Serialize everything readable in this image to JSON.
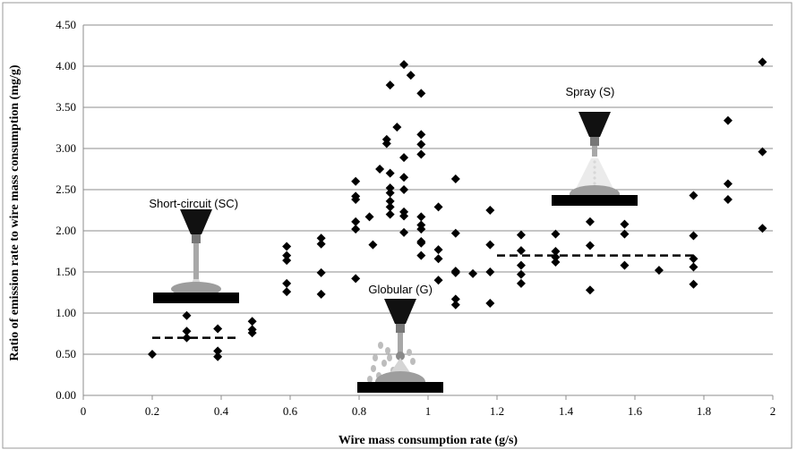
{
  "chart_data": {
    "type": "scatter",
    "title": "",
    "xlabel": "Wire mass consumption rate (g/s)",
    "ylabel": "Ratio of emission rate to wire mass consumption  (mg/g)",
    "xlim": [
      0,
      2
    ],
    "ylim": [
      0,
      4.5
    ],
    "x_ticks": [
      "0",
      "0.2",
      "0.4",
      "0.6",
      "0.8",
      "1",
      "1.2",
      "1.4",
      "1.6",
      "1.8",
      "2"
    ],
    "y_ticks": [
      "0.00",
      "0.50",
      "1.00",
      "1.50",
      "2.00",
      "2.50",
      "3.00",
      "3.50",
      "4.00",
      "4.50"
    ],
    "grid": "horizontal",
    "legend": "none",
    "marker": "diamond",
    "series": [
      {
        "points": [
          [
            0.2,
            0.5
          ],
          [
            0.3,
            0.97
          ],
          [
            0.3,
            0.78
          ],
          [
            0.3,
            0.7
          ],
          [
            0.39,
            0.81
          ],
          [
            0.39,
            0.54
          ],
          [
            0.39,
            0.47
          ],
          [
            0.49,
            0.9
          ],
          [
            0.49,
            0.8
          ],
          [
            0.49,
            0.76
          ],
          [
            0.59,
            1.81
          ],
          [
            0.59,
            1.7
          ],
          [
            0.59,
            1.64
          ],
          [
            0.59,
            1.36
          ],
          [
            0.59,
            1.26
          ],
          [
            0.69,
            1.91
          ],
          [
            0.69,
            1.84
          ],
          [
            0.69,
            1.49
          ],
          [
            0.69,
            1.23
          ],
          [
            0.79,
            2.6
          ],
          [
            0.79,
            2.42
          ],
          [
            0.79,
            2.38
          ],
          [
            0.79,
            2.11
          ],
          [
            0.79,
            2.02
          ],
          [
            0.79,
            1.42
          ],
          [
            0.83,
            2.17
          ],
          [
            0.84,
            1.83
          ],
          [
            0.86,
            2.75
          ],
          [
            0.88,
            3.11
          ],
          [
            0.88,
            3.06
          ],
          [
            0.89,
            3.77
          ],
          [
            0.89,
            2.7
          ],
          [
            0.89,
            2.52
          ],
          [
            0.89,
            2.46
          ],
          [
            0.89,
            2.36
          ],
          [
            0.89,
            2.29
          ],
          [
            0.89,
            2.2
          ],
          [
            0.91,
            3.26
          ],
          [
            0.93,
            4.02
          ],
          [
            0.93,
            2.89
          ],
          [
            0.93,
            2.65
          ],
          [
            0.93,
            2.5
          ],
          [
            0.93,
            2.23
          ],
          [
            0.93,
            2.18
          ],
          [
            0.93,
            1.98
          ],
          [
            0.95,
            3.89
          ],
          [
            0.98,
            3.67
          ],
          [
            0.98,
            3.17
          ],
          [
            0.98,
            3.05
          ],
          [
            0.98,
            2.93
          ],
          [
            0.98,
            2.17
          ],
          [
            0.98,
            2.07
          ],
          [
            0.98,
            2.02
          ],
          [
            0.98,
            1.87
          ],
          [
            0.98,
            1.85
          ],
          [
            0.98,
            1.7
          ],
          [
            1.03,
            2.29
          ],
          [
            1.03,
            1.77
          ],
          [
            1.03,
            1.66
          ],
          [
            1.03,
            1.4
          ],
          [
            1.08,
            2.63
          ],
          [
            1.08,
            1.97
          ],
          [
            1.08,
            1.51
          ],
          [
            1.08,
            1.17
          ],
          [
            1.08,
            1.1
          ],
          [
            1.08,
            1.49
          ],
          [
            1.13,
            1.48
          ],
          [
            1.18,
            2.25
          ],
          [
            1.18,
            1.83
          ],
          [
            1.18,
            1.5
          ],
          [
            1.18,
            1.12
          ],
          [
            1.27,
            1.95
          ],
          [
            1.27,
            1.76
          ],
          [
            1.27,
            1.58
          ],
          [
            1.27,
            1.47
          ],
          [
            1.27,
            1.36
          ],
          [
            1.37,
            1.96
          ],
          [
            1.37,
            1.75
          ],
          [
            1.37,
            1.68
          ],
          [
            1.37,
            1.62
          ],
          [
            1.47,
            2.11
          ],
          [
            1.47,
            1.82
          ],
          [
            1.47,
            1.28
          ],
          [
            1.57,
            2.08
          ],
          [
            1.57,
            1.96
          ],
          [
            1.57,
            1.58
          ],
          [
            1.67,
            1.52
          ],
          [
            1.77,
            2.43
          ],
          [
            1.77,
            1.94
          ],
          [
            1.77,
            1.66
          ],
          [
            1.77,
            1.56
          ],
          [
            1.77,
            1.35
          ],
          [
            1.87,
            3.34
          ],
          [
            1.87,
            2.57
          ],
          [
            1.87,
            2.38
          ],
          [
            1.97,
            4.05
          ],
          [
            1.97,
            2.96
          ],
          [
            1.97,
            2.03
          ]
        ]
      }
    ],
    "mean_lines": [
      {
        "x_range": [
          0.2,
          0.45
        ],
        "y": 0.7
      },
      {
        "x_range": [
          1.2,
          1.77
        ],
        "y": 1.7
      }
    ],
    "annotations": [
      {
        "text": "Short-circuit (SC)",
        "x": 0.32,
        "y": 2.28
      },
      {
        "text": "Globular (G)",
        "x": 0.92,
        "y": 1.24
      },
      {
        "text": "Spray (S)",
        "x": 1.47,
        "y": 3.64
      }
    ]
  }
}
